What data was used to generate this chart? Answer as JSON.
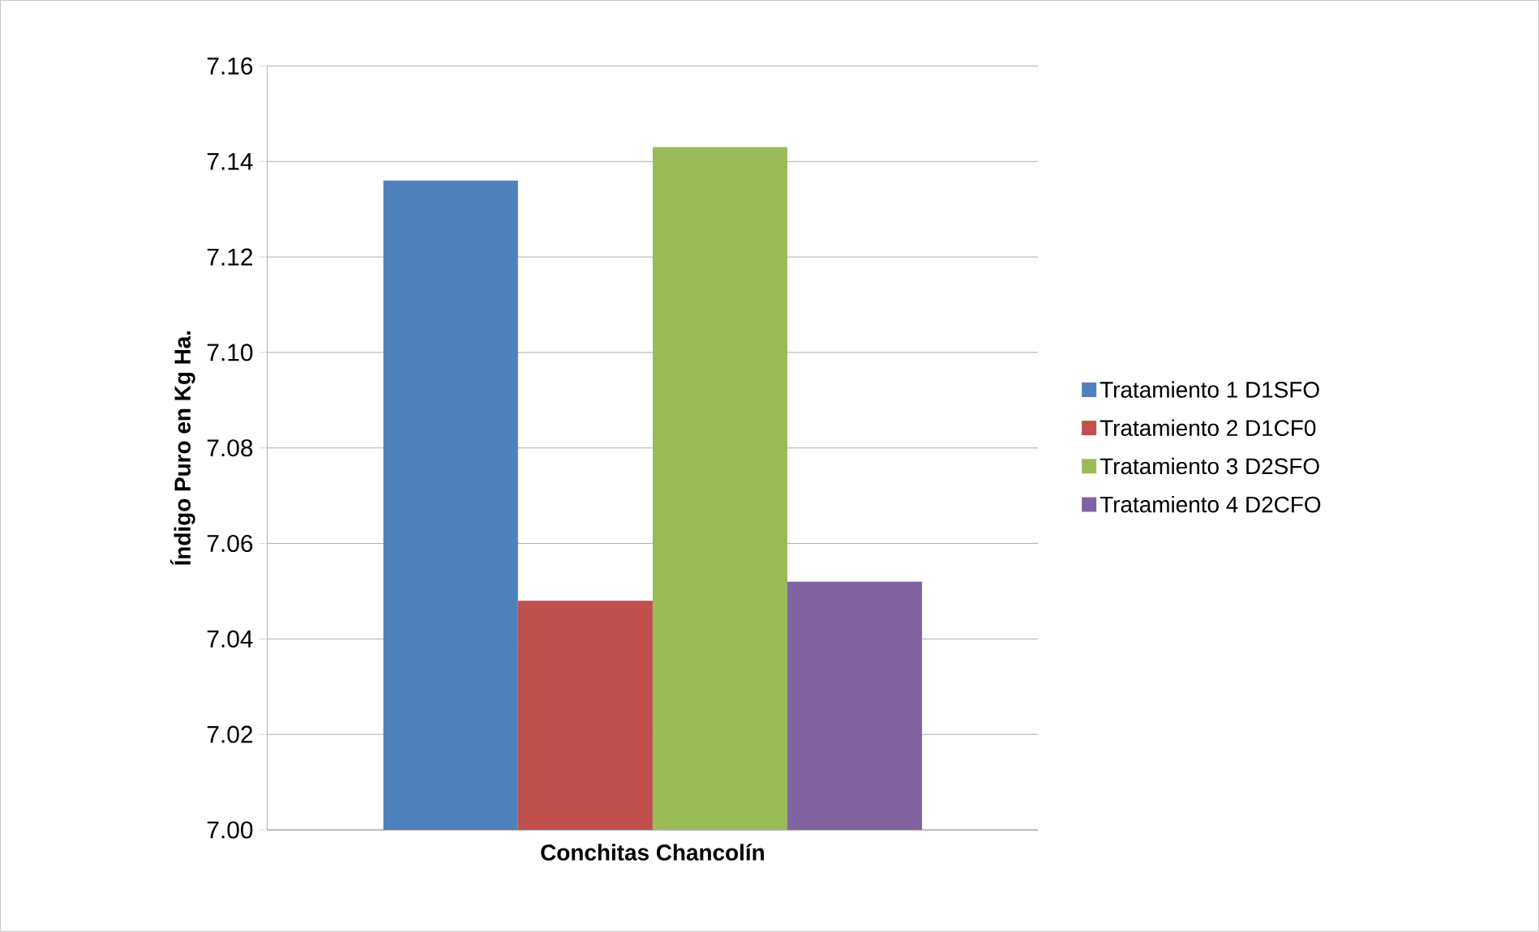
{
  "chart_data": {
    "type": "bar",
    "ylabel": "Índigo Puro en Kg Ha.",
    "categories": [
      "Conchitas Chancolín"
    ],
    "series": [
      {
        "name": "Tratamiento 1 D1SFO",
        "color": "#4f81bd",
        "values": [
          7.136
        ]
      },
      {
        "name": "Tratamiento 2 D1CF0",
        "color": "#c0504d",
        "values": [
          7.048
        ]
      },
      {
        "name": "Tratamiento 3 D2SFO",
        "color": "#9bbb59",
        "values": [
          7.143
        ]
      },
      {
        "name": "Tratamiento 4 D2CFO",
        "color": "#8064a2",
        "values": [
          7.052
        ]
      }
    ],
    "ylim": [
      7.0,
      7.16
    ],
    "yticks": [
      {
        "value": 7.0,
        "label": "7.00"
      },
      {
        "value": 7.02,
        "label": "7.02"
      },
      {
        "value": 7.04,
        "label": "7.04"
      },
      {
        "value": 7.06,
        "label": "7.06"
      },
      {
        "value": 7.08,
        "label": "7.08"
      },
      {
        "value": 7.1,
        "label": "7.10"
      },
      {
        "value": 7.12,
        "label": "7.12"
      },
      {
        "value": 7.14,
        "label": "7.14"
      },
      {
        "value": 7.16,
        "label": "7.16"
      }
    ],
    "grid": "y",
    "legend": "right"
  }
}
